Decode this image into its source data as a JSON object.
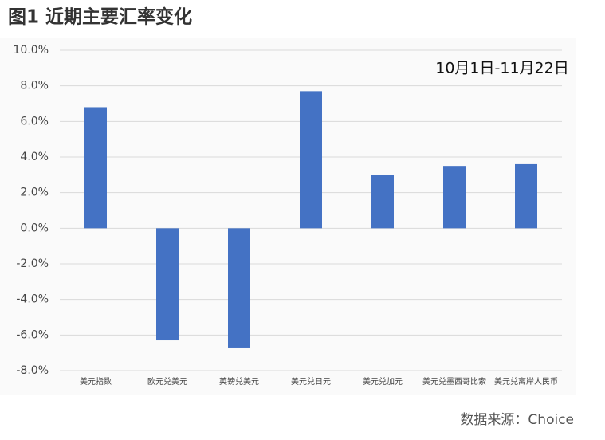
{
  "chart_data": {
    "type": "bar",
    "title": "图1  近期主要汇率变化",
    "annotation": "10月1日-11月22日",
    "source": "数据来源：Choice",
    "categories": [
      "美元指数",
      "欧元兑美元",
      "英镑兑美元",
      "美元兑日元",
      "美元兑加元",
      "美元兑墨西哥比索",
      "美元兑离岸人民币"
    ],
    "values": [
      6.8,
      -6.3,
      -6.7,
      7.7,
      3.0,
      3.5,
      3.6
    ],
    "color": "#4472c4",
    "ylim": [
      -8,
      10
    ],
    "yticks": [
      {
        "value": 10,
        "label": "10.0%"
      },
      {
        "value": 8,
        "label": "8.0%"
      },
      {
        "value": 6,
        "label": "6.0%"
      },
      {
        "value": 4,
        "label": "4.0%"
      },
      {
        "value": 2,
        "label": "2.0%"
      },
      {
        "value": 0,
        "label": "0.0%"
      },
      {
        "value": -2,
        "label": "-2.0%"
      },
      {
        "value": -4,
        "label": "-4.0%"
      },
      {
        "value": -6,
        "label": "-6.0%"
      },
      {
        "value": -8,
        "label": "-8.0%"
      }
    ],
    "grid": true
  }
}
